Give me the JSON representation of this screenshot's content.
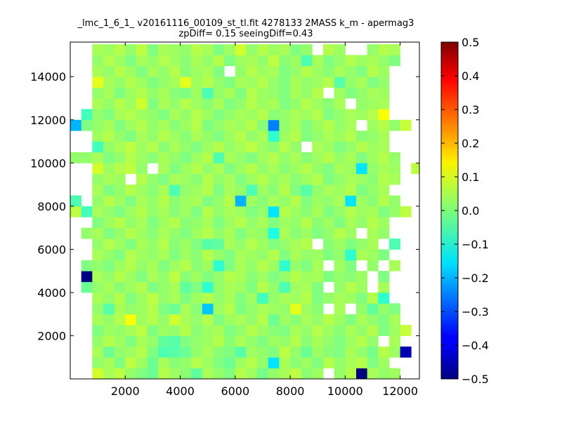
{
  "chart_data": {
    "type": "heatmap",
    "title": "_lmc_1_6_1_ v20161116_00109_st_tl.fit 4278133 2MASS k_m - apermag3",
    "subtitle": "zpDiff= 0.15 seeingDiff=0.43",
    "xlabel": "",
    "ylabel": "",
    "xlim": [
      0,
      12700
    ],
    "ylim": [
      0,
      15600
    ],
    "x_ticks": [
      2000,
      4000,
      6000,
      8000,
      10000,
      12000
    ],
    "x_tick_labels": [
      "2000",
      "4000",
      "6000",
      "8000",
      "10000",
      "12000"
    ],
    "y_ticks": [
      2000,
      4000,
      6000,
      8000,
      10000,
      12000,
      14000
    ],
    "y_tick_labels": [
      "2000",
      "4000",
      "6000",
      "8000",
      "10000",
      "12000",
      "14000"
    ],
    "colorscale": "jet",
    "vmin": -0.5,
    "vmax": 0.5,
    "colorbar_ticks": [
      0.5,
      0.4,
      0.3,
      0.2,
      0.1,
      0.0,
      -0.1,
      -0.2,
      -0.3,
      -0.4,
      -0.5
    ],
    "colorbar_tick_labels": [
      "0.5",
      "0.4",
      "0.3",
      "0.2",
      "0.1",
      "0.0",
      "−0.1",
      "−0.2",
      "−0.3",
      "−0.4",
      "−0.5"
    ],
    "grid": false,
    "bin_width": 400,
    "bin_height": 500,
    "x_bin_starts": [
      0,
      400,
      800,
      1200,
      1600,
      2000,
      2400,
      2800,
      3200,
      3600,
      4000,
      4400,
      4800,
      5200,
      5600,
      6000,
      6400,
      6800,
      7200,
      7600,
      8000,
      8400,
      8800,
      9200,
      9600,
      10000,
      10400,
      10800,
      11200,
      11600,
      12000,
      12400
    ],
    "y_bin_starts": [
      0,
      500,
      1000,
      1500,
      2000,
      2500,
      3000,
      3500,
      4000,
      4500,
      5000,
      5500,
      6000,
      6500,
      7000,
      7500,
      8000,
      8500,
      9000,
      9500,
      10000,
      10500,
      11000,
      11500,
      12000,
      12500,
      13000,
      13500,
      14000,
      14500,
      15000
    ],
    "values": [
      [
        null,
        null,
        0.08,
        0.04,
        0.06,
        0.02,
        0.0,
        -0.02,
        0.05,
        0.03,
        0.01,
        -0.03,
        0.04,
        0.02,
        0.0,
        0.05,
        0.03,
        -0.01,
        0.02,
        0.04,
        0.06,
        0.01,
        0.03,
        null,
        0.02,
        0.05,
        -0.55,
        0.04,
        0.02,
        0.03,
        null,
        null
      ],
      [
        null,
        null,
        0.02,
        0.04,
        0.0,
        0.06,
        0.03,
        -0.02,
        0.04,
        0.01,
        0.02,
        0.05,
        0.03,
        0.0,
        -0.02,
        0.03,
        0.05,
        0.02,
        -0.15,
        0.04,
        0.01,
        0.03,
        0.0,
        0.05,
        0.02,
        0.04,
        0.05,
        0.0,
        0.03,
        null,
        null,
        null
      ],
      [
        null,
        null,
        0.04,
        -0.02,
        0.02,
        0.03,
        0.05,
        0.0,
        -0.05,
        -0.04,
        -0.02,
        0.02,
        0.04,
        0.01,
        0.0,
        -0.04,
        0.03,
        0.02,
        0.0,
        0.06,
        0.02,
        -0.02,
        0.03,
        0.01,
        0.0,
        0.04,
        0.02,
        -0.01,
        0.05,
        0.03,
        -0.45,
        null
      ],
      [
        null,
        null,
        0.02,
        0.05,
        0.03,
        0.0,
        0.04,
        0.02,
        -0.03,
        -0.04,
        0.0,
        0.02,
        0.03,
        0.05,
        0.01,
        0.04,
        0.02,
        0.0,
        0.03,
        0.02,
        0.05,
        0.01,
        0.04,
        0.02,
        0.0,
        0.03,
        0.05,
        0.02,
        null,
        0.04,
        null,
        null
      ],
      [
        null,
        null,
        0.0,
        0.03,
        0.02,
        0.04,
        0.06,
        0.0,
        0.03,
        0.02,
        0.05,
        0.01,
        0.03,
        0.04,
        0.0,
        0.02,
        0.05,
        0.03,
        0.01,
        0.0,
        0.04,
        0.02,
        0.05,
        0.03,
        0.01,
        0.04,
        0.02,
        0.05,
        0.0,
        0.03,
        0.07,
        null
      ],
      [
        null,
        null,
        0.04,
        0.02,
        0.05,
        0.12,
        0.03,
        0.05,
        0.02,
        0.08,
        0.04,
        0.02,
        0.05,
        0.0,
        0.03,
        0.04,
        0.02,
        0.05,
        -0.02,
        0.03,
        0.01,
        0.04,
        0.02,
        0.05,
        0.03,
        0.0,
        0.04,
        0.02,
        0.0,
        0.04,
        null,
        null
      ],
      [
        null,
        null,
        0.02,
        -0.04,
        0.04,
        0.02,
        0.03,
        0.05,
        0.0,
        -0.02,
        0.04,
        0.01,
        -0.18,
        0.03,
        0.05,
        0.0,
        0.02,
        0.04,
        0.03,
        0.02,
        0.1,
        0.03,
        0.01,
        null,
        0.04,
        null,
        0.02,
        -0.03,
        0.02,
        0.0,
        null,
        null
      ],
      [
        null,
        null,
        0.04,
        0.02,
        0.05,
        0.0,
        0.03,
        0.06,
        0.02,
        0.04,
        0.0,
        0.03,
        0.05,
        0.02,
        0.04,
        0.0,
        0.03,
        -0.06,
        0.02,
        0.04,
        0.03,
        0.05,
        0.0,
        0.02,
        0.04,
        0.03,
        0.0,
        0.05,
        -0.08,
        null,
        null,
        null
      ],
      [
        null,
        -0.02,
        0.02,
        0.04,
        0.01,
        0.03,
        0.05,
        0.0,
        0.02,
        0.04,
        -0.03,
        0.0,
        -0.08,
        0.02,
        0.04,
        0.03,
        0.0,
        0.05,
        0.02,
        -0.05,
        0.03,
        0.04,
        0.0,
        null,
        0.02,
        0.05,
        0.03,
        null,
        0.04,
        null,
        null,
        null
      ],
      [
        null,
        -0.55,
        0.04,
        0.02,
        0.05,
        0.03,
        0.0,
        0.04,
        0.02,
        0.06,
        0.01,
        0.03,
        0.0,
        0.02,
        0.05,
        0.04,
        0.01,
        0.03,
        0.0,
        0.02,
        0.05,
        0.03,
        0.04,
        0.0,
        0.02,
        0.01,
        0.03,
        null,
        0.0,
        null,
        null,
        null
      ],
      [
        null,
        0.0,
        0.02,
        0.0,
        0.03,
        0.05,
        0.02,
        0.04,
        0.0,
        0.03,
        0.05,
        0.01,
        0.03,
        -0.08,
        0.0,
        0.04,
        0.02,
        0.05,
        0.03,
        -0.08,
        0.02,
        0.0,
        0.04,
        null,
        0.03,
        0.0,
        null,
        0.02,
        null,
        0.04,
        null,
        null
      ],
      [
        null,
        null,
        0.04,
        0.02,
        0.0,
        0.05,
        0.03,
        0.02,
        0.04,
        0.0,
        0.03,
        0.01,
        0.05,
        0.02,
        0.0,
        0.04,
        0.03,
        0.02,
        0.05,
        0.0,
        0.04,
        0.02,
        0.03,
        0.0,
        0.02,
        -0.08,
        0.04,
        0.03,
        0.0,
        null,
        null,
        null
      ],
      [
        null,
        null,
        0.02,
        0.05,
        0.03,
        0.0,
        0.04,
        0.02,
        0.05,
        0.01,
        0.03,
        0.0,
        -0.04,
        -0.03,
        0.04,
        0.02,
        0.05,
        0.03,
        0.0,
        0.02,
        0.04,
        0.05,
        null,
        0.01,
        0.03,
        0.0,
        0.02,
        0.04,
        null,
        -0.05,
        null,
        null
      ],
      [
        null,
        0.02,
        0.04,
        0.0,
        0.02,
        0.05,
        0.03,
        0.01,
        0.04,
        0.02,
        0.0,
        0.03,
        0.05,
        0.02,
        0.04,
        0.0,
        0.03,
        0.02,
        -0.1,
        0.04,
        0.01,
        0.03,
        0.0,
        0.02,
        0.05,
        0.03,
        null,
        0.04,
        0.02,
        null,
        null,
        null
      ],
      [
        null,
        null,
        0.0,
        0.03,
        0.05,
        0.02,
        0.04,
        0.0,
        0.03,
        0.05,
        0.01,
        0.02,
        0.04,
        0.0,
        0.03,
        0.05,
        0.02,
        0.04,
        0.0,
        0.03,
        0.02,
        0.05,
        0.01,
        0.03,
        0.0,
        0.04,
        0.02,
        0.05,
        0.03,
        null,
        null,
        null
      ],
      [
        0.06,
        -0.06,
        0.04,
        0.02,
        0.0,
        0.03,
        0.05,
        0.02,
        0.04,
        0.01,
        0.03,
        0.0,
        0.05,
        0.02,
        0.04,
        0.03,
        0.0,
        0.02,
        -0.15,
        0.05,
        0.03,
        0.01,
        0.04,
        0.0,
        0.02,
        0.05,
        0.03,
        0.04,
        0.0,
        0.02,
        0.06,
        null
      ],
      [
        -0.05,
        null,
        0.02,
        0.05,
        0.03,
        0.0,
        0.04,
        0.02,
        0.05,
        0.01,
        0.03,
        0.04,
        0.0,
        0.02,
        0.05,
        -0.2,
        0.03,
        0.01,
        0.04,
        0.02,
        0.05,
        0.0,
        0.03,
        0.02,
        0.04,
        -0.15,
        0.03,
        0.01,
        0.05,
        0.02,
        null,
        null
      ],
      [
        null,
        null,
        0.04,
        0.0,
        0.02,
        0.05,
        0.03,
        0.01,
        0.04,
        -0.05,
        0.02,
        0.03,
        0.05,
        0.0,
        0.04,
        0.02,
        -0.05,
        0.03,
        0.01,
        0.05,
        0.0,
        -0.04,
        0.02,
        0.04,
        0.03,
        0.05,
        0.0,
        0.02,
        0.04,
        null,
        null,
        null
      ],
      [
        null,
        null,
        0.02,
        0.04,
        0.03,
        null,
        0.05,
        0.02,
        0.0,
        0.04,
        0.03,
        0.01,
        0.05,
        0.02,
        0.04,
        0.0,
        0.03,
        0.05,
        0.02,
        0.04,
        0.01,
        0.03,
        0.05,
        0.0,
        0.02,
        0.04,
        0.03,
        0.01,
        0.05,
        0.04,
        null,
        null
      ],
      [
        null,
        null,
        0.08,
        0.03,
        0.05,
        0.06,
        0.02,
        null,
        0.04,
        0.0,
        0.03,
        0.05,
        0.02,
        0.04,
        0.0,
        0.03,
        0.05,
        0.02,
        0.04,
        0.01,
        0.03,
        0.05,
        0.02,
        0.0,
        0.04,
        0.03,
        -0.15,
        0.02,
        0.04,
        0.03,
        null,
        0.06
      ],
      [
        0.02,
        0.02,
        0.04,
        0.0,
        0.02,
        0.05,
        0.03,
        0.01,
        0.04,
        0.02,
        0.0,
        0.03,
        0.05,
        -0.05,
        0.04,
        0.02,
        0.0,
        0.03,
        0.05,
        0.02,
        0.04,
        0.01,
        0.03,
        0.05,
        0.02,
        0.04,
        0.0,
        0.03,
        0.05,
        0.02,
        null,
        null
      ],
      [
        null,
        null,
        -0.06,
        0.02,
        0.04,
        0.06,
        0.03,
        0.05,
        0.01,
        0.04,
        0.02,
        0.0,
        0.03,
        0.05,
        0.02,
        0.04,
        0.06,
        0.03,
        0.01,
        0.05,
        0.02,
        null,
        0.04,
        0.03,
        0.0,
        0.02,
        0.05,
        0.03,
        0.04,
        null,
        null,
        null
      ],
      [
        null,
        null,
        0.03,
        0.05,
        0.02,
        0.0,
        0.04,
        0.02,
        0.05,
        0.03,
        0.01,
        0.04,
        0.02,
        0.0,
        0.03,
        0.05,
        0.02,
        0.04,
        -0.08,
        0.03,
        0.05,
        0.0,
        0.02,
        0.04,
        0.03,
        0.05,
        0.01,
        0.02,
        0.04,
        null,
        null,
        null
      ],
      [
        -0.2,
        0.0,
        0.02,
        0.04,
        0.0,
        0.03,
        0.05,
        0.02,
        0.04,
        0.01,
        0.03,
        0.05,
        0.0,
        0.02,
        0.04,
        0.03,
        0.05,
        0.01,
        -0.25,
        0.02,
        0.04,
        0.0,
        0.03,
        0.05,
        0.02,
        0.04,
        null,
        0.03,
        0.05,
        0.02,
        0.07,
        null
      ],
      [
        null,
        -0.06,
        0.02,
        0.0,
        0.04,
        0.05,
        0.03,
        0.02,
        0.0,
        0.04,
        0.02,
        0.05,
        0.03,
        0.0,
        0.02,
        0.04,
        0.03,
        0.05,
        0.01,
        0.02,
        0.04,
        0.03,
        0.05,
        0.0,
        0.02,
        0.04,
        0.03,
        0.05,
        0.12,
        null,
        null,
        null
      ],
      [
        null,
        null,
        0.04,
        0.02,
        0.05,
        0.03,
        0.08,
        0.0,
        0.04,
        0.02,
        0.05,
        0.03,
        0.01,
        0.04,
        0.0,
        0.02,
        0.05,
        0.03,
        0.04,
        0.0,
        0.02,
        0.05,
        0.03,
        0.01,
        0.04,
        null,
        0.02,
        0.03,
        0.04,
        null,
        null,
        null
      ],
      [
        null,
        null,
        0.02,
        0.04,
        0.0,
        0.03,
        0.05,
        0.02,
        0.04,
        0.01,
        0.0,
        0.03,
        -0.05,
        0.02,
        0.04,
        0.0,
        0.05,
        0.03,
        0.02,
        0.0,
        0.04,
        0.02,
        0.05,
        null,
        0.03,
        0.0,
        0.02,
        0.04,
        0.03,
        null,
        null,
        null
      ],
      [
        null,
        null,
        0.1,
        0.04,
        0.02,
        0.05,
        0.03,
        0.0,
        0.02,
        0.04,
        0.1,
        0.03,
        0.05,
        0.02,
        0.0,
        0.04,
        0.03,
        0.05,
        0.02,
        0.0,
        0.04,
        0.02,
        0.03,
        0.05,
        -0.04,
        0.02,
        0.04,
        0.0,
        0.02,
        null,
        null,
        null
      ],
      [
        null,
        null,
        0.04,
        0.02,
        0.05,
        0.03,
        0.0,
        0.04,
        0.02,
        0.05,
        0.01,
        0.03,
        0.04,
        0.0,
        null,
        0.02,
        0.05,
        0.03,
        0.04,
        0.0,
        0.02,
        0.05,
        0.03,
        0.01,
        0.04,
        0.02,
        0.0,
        0.05,
        0.03,
        null,
        null,
        null
      ],
      [
        null,
        null,
        0.02,
        0.05,
        0.03,
        0.0,
        0.04,
        0.02,
        0.05,
        0.03,
        0.01,
        0.04,
        0.02,
        0.05,
        0.0,
        0.03,
        0.04,
        0.02,
        0.06,
        0.01,
        0.03,
        -0.05,
        0.04,
        0.0,
        0.02,
        0.05,
        0.03,
        0.04,
        0.02,
        0.0,
        null,
        null
      ],
      [
        null,
        null,
        0.04,
        0.03,
        0.05,
        0.02,
        0.06,
        0.0,
        0.04,
        0.03,
        0.02,
        0.05,
        0.04,
        0.0,
        0.03,
        0.08,
        0.02,
        0.05,
        0.03,
        0.04,
        0.0,
        0.02,
        null,
        0.05,
        0.03,
        null,
        null,
        0.02,
        0.05,
        0.04,
        null,
        null
      ]
    ]
  }
}
